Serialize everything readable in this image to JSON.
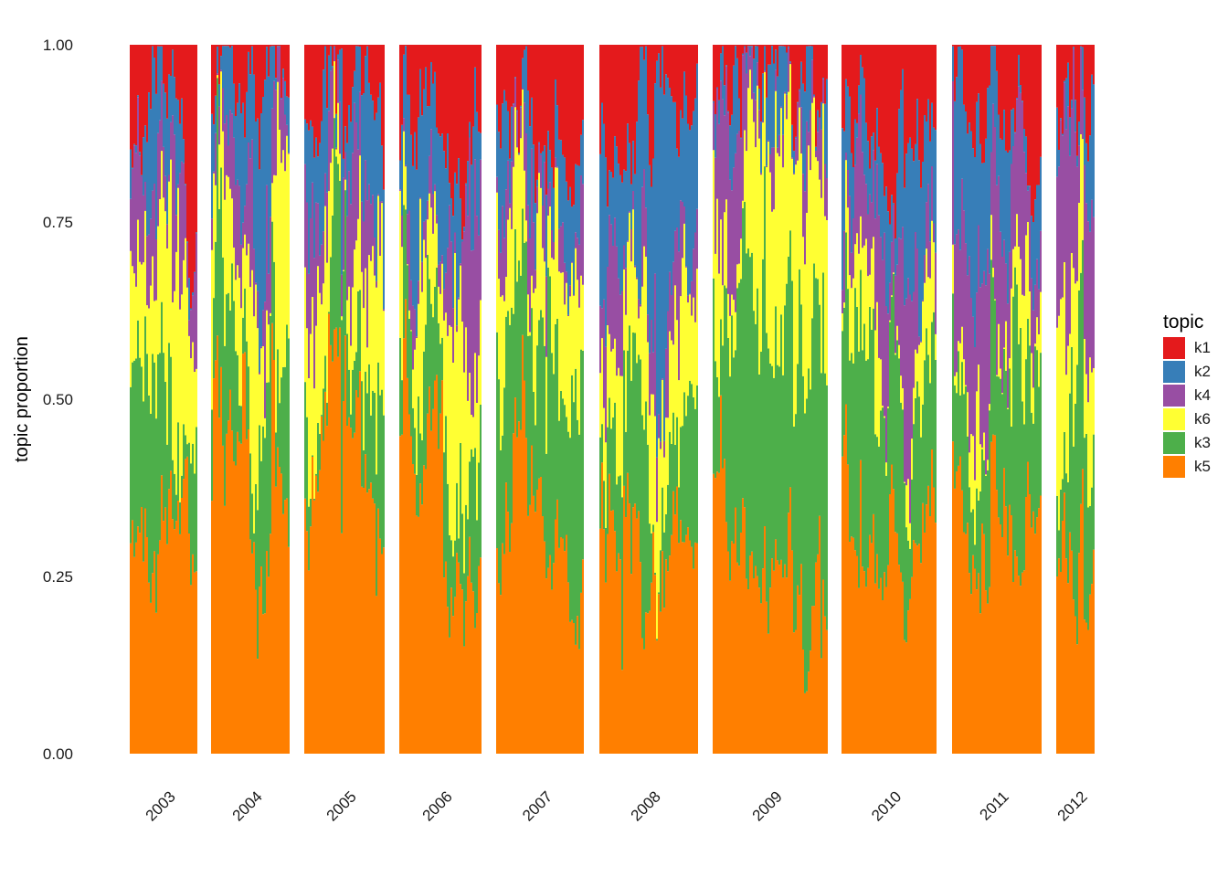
{
  "chart_data": {
    "type": "area",
    "stacked": true,
    "faceted_by": "year",
    "ylabel": "topic proportion",
    "xlabel": "",
    "ylim": [
      0,
      1
    ],
    "yticks": [
      "0.00",
      "0.25",
      "0.50",
      "0.75",
      "1.00"
    ],
    "grid": false,
    "legend": {
      "title": "topic",
      "position": "right",
      "entries": [
        {
          "name": "k1",
          "color": "#E41A1C"
        },
        {
          "name": "k2",
          "color": "#377EB8"
        },
        {
          "name": "k4",
          "color": "#984EA3"
        },
        {
          "name": "k6",
          "color": "#FFFF33"
        },
        {
          "name": "k3",
          "color": "#4DAF4A"
        },
        {
          "name": "k5",
          "color": "#FF7F00"
        }
      ]
    },
    "stack_order_bottom_to_top": [
      "k5",
      "k3",
      "k6",
      "k4",
      "k2",
      "k1"
    ],
    "panels": [
      {
        "year": "2003",
        "mean_proportions": {
          "k5": 0.3,
          "k3": 0.22,
          "k6": 0.18,
          "k4": 0.14,
          "k2": 0.04,
          "k1": 0.12
        }
      },
      {
        "year": "2004",
        "mean_proportions": {
          "k5": 0.38,
          "k3": 0.14,
          "k6": 0.22,
          "k4": 0.06,
          "k2": 0.14,
          "k1": 0.06
        }
      },
      {
        "year": "2005",
        "mean_proportions": {
          "k5": 0.36,
          "k3": 0.16,
          "k6": 0.18,
          "k4": 0.08,
          "k2": 0.12,
          "k1": 0.1
        }
      },
      {
        "year": "2006",
        "mean_proportions": {
          "k5": 0.4,
          "k3": 0.16,
          "k6": 0.16,
          "k4": 0.06,
          "k2": 0.12,
          "k1": 0.1
        }
      },
      {
        "year": "2007",
        "mean_proportions": {
          "k5": 0.38,
          "k3": 0.26,
          "k6": 0.18,
          "k4": 0.04,
          "k2": 0.06,
          "k1": 0.08
        }
      },
      {
        "year": "2008",
        "mean_proportions": {
          "k5": 0.3,
          "k3": 0.14,
          "k6": 0.12,
          "k4": 0.14,
          "k2": 0.22,
          "k1": 0.08
        }
      },
      {
        "year": "2009",
        "mean_proportions": {
          "k5": 0.3,
          "k3": 0.3,
          "k6": 0.2,
          "k4": 0.1,
          "k2": 0.06,
          "k1": 0.04
        }
      },
      {
        "year": "2010",
        "mean_proportions": {
          "k5": 0.34,
          "k3": 0.22,
          "k6": 0.1,
          "k4": 0.08,
          "k2": 0.14,
          "k1": 0.12
        }
      },
      {
        "year": "2011",
        "mean_proportions": {
          "k5": 0.36,
          "k3": 0.24,
          "k6": 0.08,
          "k4": 0.16,
          "k2": 0.1,
          "k1": 0.06
        }
      },
      {
        "year": "2012",
        "mean_proportions": {
          "k5": 0.34,
          "k3": 0.16,
          "k6": 0.16,
          "k4": 0.26,
          "k2": 0.04,
          "k1": 0.04
        }
      }
    ]
  }
}
